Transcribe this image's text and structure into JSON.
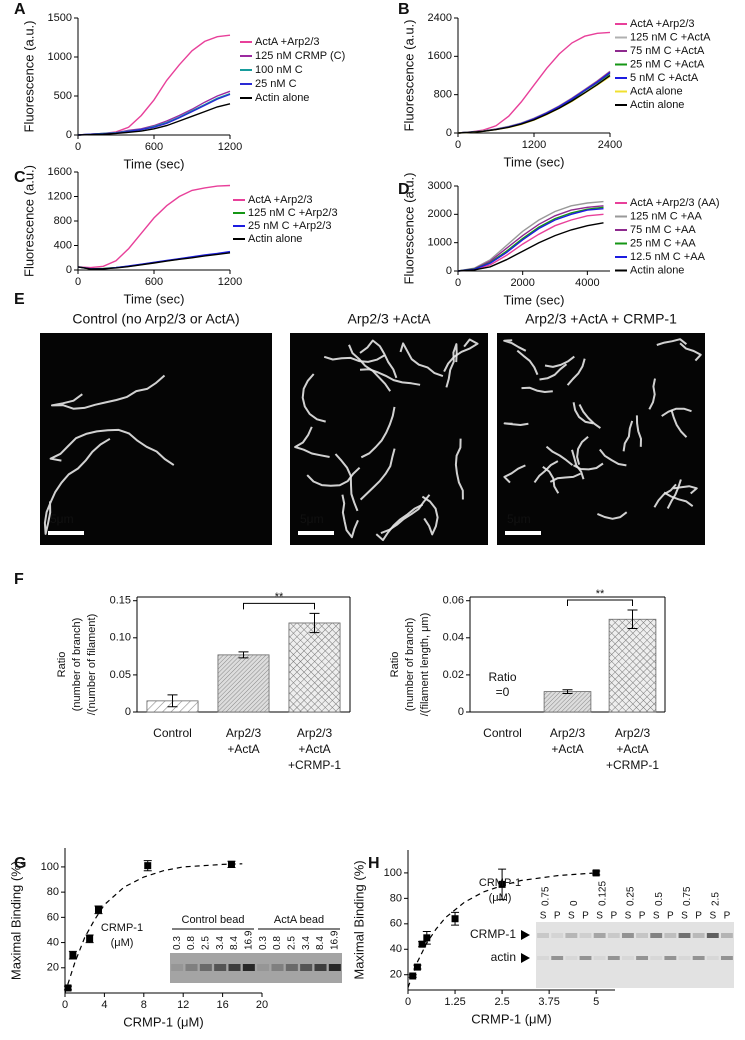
{
  "chart_data": [
    {
      "type": "line",
      "label": "A",
      "xlabel": "Time (sec)",
      "ylabel": "Fluorescence (a.u.)",
      "xlim": [
        0,
        1200
      ],
      "ylim": [
        0,
        1500
      ],
      "xticks": [
        0,
        600,
        1200
      ],
      "yticks": [
        0,
        500,
        1000,
        1500
      ],
      "x": [
        0,
        100,
        200,
        300,
        400,
        500,
        600,
        700,
        800,
        900,
        1000,
        1100,
        1200
      ],
      "series": [
        {
          "name": "ActA +Arp2/3",
          "color": "#e8409a",
          "values": [
            0,
            10,
            20,
            40,
            100,
            250,
            450,
            700,
            900,
            1080,
            1200,
            1260,
            1280
          ]
        },
        {
          "name": "125 nM CRMP (C)",
          "color": "#9c2aa0",
          "values": [
            0,
            10,
            20,
            30,
            60,
            80,
            120,
            180,
            250,
            330,
            420,
            500,
            560
          ]
        },
        {
          "name": "100 nM C",
          "color": "#179c9c",
          "values": [
            0,
            10,
            20,
            30,
            50,
            70,
            110,
            160,
            230,
            310,
            390,
            470,
            530
          ]
        },
        {
          "name": "25 nM C",
          "color": "#2a2ad4",
          "values": [
            0,
            10,
            15,
            25,
            45,
            70,
            100,
            150,
            220,
            300,
            380,
            460,
            520
          ]
        },
        {
          "name": "Actin alone",
          "color": "#000000",
          "values": [
            0,
            5,
            10,
            20,
            35,
            50,
            80,
            120,
            180,
            240,
            300,
            360,
            400
          ]
        }
      ]
    },
    {
      "type": "line",
      "label": "B",
      "xlabel": "Time (sec)",
      "ylabel": "Fluorescence (a.u.)",
      "xlim": [
        0,
        2400
      ],
      "ylim": [
        0,
        2400
      ],
      "xticks": [
        0,
        1200,
        2400
      ],
      "yticks": [
        0,
        800,
        1600,
        2400
      ],
      "x": [
        0,
        200,
        400,
        600,
        800,
        1000,
        1200,
        1400,
        1600,
        1800,
        2000,
        2200,
        2400
      ],
      "series": [
        {
          "name": "ActA +Arp2/3",
          "color": "#e8409a",
          "values": [
            0,
            20,
            60,
            150,
            350,
            650,
            1000,
            1350,
            1650,
            1880,
            2020,
            2080,
            2100
          ]
        },
        {
          "name": "125 nM C +ActA",
          "color": "#b0b0b0",
          "values": [
            0,
            20,
            45,
            85,
            140,
            210,
            310,
            430,
            570,
            730,
            910,
            1090,
            1290
          ]
        },
        {
          "name": "75 nM C +ActA",
          "color": "#8e2a8e",
          "values": [
            0,
            20,
            40,
            80,
            130,
            200,
            300,
            420,
            560,
            720,
            900,
            1080,
            1280
          ]
        },
        {
          "name": "25 nM C +ActA",
          "color": "#159615",
          "values": [
            0,
            18,
            38,
            75,
            125,
            195,
            290,
            410,
            545,
            700,
            880,
            1050,
            1240
          ]
        },
        {
          "name": "5 nM C +ActA",
          "color": "#1c1ce0",
          "values": [
            0,
            18,
            38,
            78,
            128,
            198,
            295,
            415,
            550,
            710,
            890,
            1060,
            1260
          ]
        },
        {
          "name": "ActA alone",
          "color": "#f0e030",
          "values": [
            0,
            15,
            35,
            70,
            115,
            180,
            270,
            385,
            515,
            660,
            830,
            1000,
            1180
          ]
        },
        {
          "name": "Actin alone",
          "color": "#000000",
          "values": [
            0,
            15,
            35,
            72,
            118,
            185,
            275,
            390,
            520,
            670,
            840,
            1010,
            1200
          ]
        }
      ]
    },
    {
      "type": "line",
      "label": "C",
      "xlabel": "Time (sec)",
      "ylabel": "Fluorescence (a.u.)",
      "xlim": [
        0,
        1200
      ],
      "ylim": [
        0,
        1600
      ],
      "xticks": [
        0,
        600,
        1200
      ],
      "yticks": [
        0,
        400,
        800,
        1200,
        1600
      ],
      "x": [
        0,
        100,
        200,
        300,
        400,
        500,
        600,
        700,
        800,
        900,
        1000,
        1100,
        1200
      ],
      "series": [
        {
          "name": "ActA +Arp2/3",
          "color": "#e8409a",
          "values": [
            50,
            40,
            60,
            150,
            350,
            600,
            850,
            1050,
            1200,
            1300,
            1340,
            1370,
            1380
          ]
        },
        {
          "name": "125 nM C +Arp2/3",
          "color": "#159615",
          "values": [
            50,
            20,
            25,
            40,
            60,
            90,
            120,
            150,
            180,
            210,
            240,
            265,
            290
          ]
        },
        {
          "name": "25 nM C +Arp2/3",
          "color": "#1c1ce0",
          "values": [
            50,
            20,
            20,
            40,
            65,
            95,
            125,
            155,
            185,
            215,
            245,
            270,
            300
          ]
        },
        {
          "name": "Actin alone",
          "color": "#000000",
          "values": [
            50,
            15,
            20,
            35,
            55,
            85,
            115,
            145,
            175,
            200,
            230,
            255,
            280
          ]
        }
      ]
    },
    {
      "type": "line",
      "label": "D",
      "xlabel": "Time (sec)",
      "ylabel": "Fluorescence (a.u.)",
      "xlim": [
        0,
        4700
      ],
      "ylim": [
        0,
        3000
      ],
      "xticks": [
        0,
        2000,
        4000
      ],
      "yticks": [
        0,
        1000,
        2000,
        3000
      ],
      "x": [
        0,
        500,
        1000,
        1500,
        2000,
        2500,
        3000,
        3500,
        4000,
        4500
      ],
      "series": [
        {
          "name": "ActA +Arp2/3 (AA)",
          "color": "#e8409a",
          "values": [
            0,
            50,
            220,
            550,
            950,
            1300,
            1600,
            1800,
            1950,
            2000
          ]
        },
        {
          "name": "125 nM C +AA",
          "color": "#999999",
          "values": [
            0,
            100,
            400,
            900,
            1400,
            1800,
            2100,
            2300,
            2400,
            2450
          ]
        },
        {
          "name": "75 nM C +AA",
          "color": "#8e2a8e",
          "values": [
            0,
            80,
            350,
            800,
            1250,
            1650,
            1950,
            2150,
            2250,
            2300
          ]
        },
        {
          "name": "25 nM C +AA",
          "color": "#159615",
          "values": [
            0,
            70,
            300,
            700,
            1150,
            1550,
            1850,
            2050,
            2180,
            2250
          ]
        },
        {
          "name": "12.5 nM C +AA",
          "color": "#1c1ce0",
          "values": [
            0,
            60,
            280,
            650,
            1100,
            1500,
            1800,
            2000,
            2150,
            2200
          ]
        },
        {
          "name": "Actin alone",
          "color": "#000000",
          "values": [
            0,
            40,
            150,
            400,
            700,
            1000,
            1250,
            1450,
            1600,
            1700
          ]
        }
      ]
    },
    {
      "type": "micrograph",
      "label": "E",
      "panels": [
        {
          "title": "Control (no Arp2/3 or ActA)",
          "scale": "5μm"
        },
        {
          "title": "Arp2/3 +ActA",
          "scale": "5μm"
        },
        {
          "title": "Arp2/3 +ActA + CRMP-1",
          "scale": "5μm"
        }
      ]
    },
    {
      "type": "bar",
      "label": "F",
      "ylabel": [
        "Ratio",
        "(number of branch)",
        "/(number of filament)"
      ],
      "categories": [
        [
          "Control"
        ],
        [
          "Arp2/3",
          "+ActA"
        ],
        [
          "Arp2/3",
          "+ActA",
          "+CRMP-1"
        ]
      ],
      "values": [
        0.015,
        0.077,
        0.12
      ],
      "errors": [
        0.008,
        0.004,
        0.013
      ],
      "ylim": [
        0,
        0.155
      ],
      "yticks": [
        0,
        0.05,
        {
          "value": 0.1,
          "label": "0.10"
        },
        0.15
      ],
      "significance": "**"
    },
    {
      "type": "bar",
      "ylabel": [
        "Ratio",
        "(number of branch)",
        "/(filament length, μm)"
      ],
      "categories": [
        [
          "Control"
        ],
        [
          "Arp2/3",
          "+ActA"
        ],
        [
          "Arp2/3",
          "+ActA",
          "+CRMP-1"
        ]
      ],
      "values": [
        0,
        0.011,
        0.05
      ],
      "errors": [
        null,
        0.001,
        0.005
      ],
      "ylim": [
        0,
        0.062
      ],
      "yticks": [
        0,
        0.02,
        0.04,
        0.06
      ],
      "significance": "**",
      "note": [
        "Ratio",
        "=0"
      ]
    },
    {
      "type": "scatter",
      "label": "G",
      "xlabel": "CRMP-1 (μM)",
      "ylabel": "Maximal Binding (%)",
      "xlim": [
        0,
        20
      ],
      "ylim": [
        0,
        115
      ],
      "xticks": [
        0,
        4,
        8,
        12,
        16,
        20
      ],
      "yticks": [
        20,
        40,
        60,
        80,
        100
      ],
      "x": [
        0.3,
        0.8,
        2.5,
        3.4,
        8.4,
        16.9
      ],
      "values": [
        4,
        30,
        43,
        66,
        101,
        102
      ],
      "errors": [
        1.5,
        3,
        3,
        3,
        4,
        2.5
      ],
      "fit": {
        "x": [
          0,
          1,
          2,
          3,
          4,
          6,
          8,
          10,
          12,
          14,
          16,
          18
        ],
        "values": [
          0,
          24,
          44,
          58,
          70,
          84,
          92,
          97,
          100,
          101,
          102,
          102.5
        ]
      },
      "inset": {
        "title": "CRMP-1",
        "unit": "(μM)",
        "groups": [
          {
            "name": "Control bead",
            "lanes": [
              0.3,
              0.8,
              2.5,
              3.4,
              8.4,
              16.9
            ]
          },
          {
            "name": "ActA bead",
            "lanes": [
              0.3,
              0.8,
              2.5,
              3.4,
              8.4,
              16.9
            ]
          }
        ]
      }
    },
    {
      "type": "scatter",
      "label": "H",
      "xlabel": "CRMP-1 (μM)",
      "ylabel": "Maximal Binding (%)",
      "xlim": [
        0,
        5.5
      ],
      "ylim": [
        8,
        118
      ],
      "xticks": [
        0,
        1.25,
        2.5,
        3.75,
        5
      ],
      "yticks": [
        20,
        40,
        60,
        80,
        100
      ],
      "x": [
        0.125,
        0.25,
        0.375,
        0.5,
        1.25,
        2.5,
        5
      ],
      "values": [
        19,
        26,
        44,
        49,
        64,
        91,
        100
      ],
      "errors": [
        1,
        1.5,
        2,
        5,
        5,
        12,
        1.5
      ],
      "fit": {
        "x": [
          0,
          0.25,
          0.5,
          0.75,
          1,
          1.5,
          2,
          2.5,
          3,
          4,
          5
        ],
        "values": [
          10,
          30,
          45,
          56,
          65,
          77,
          85,
          90,
          94,
          98,
          100
        ]
      },
      "inset": {
        "title": "CRMP-1",
        "unit": "(μM)",
        "lanes": [
          0.75,
          0,
          0.125,
          0.25,
          0.5,
          0.75,
          2.5
        ],
        "fractions": [
          "S",
          "P"
        ],
        "bands": [
          "CRMP-1",
          "actin"
        ]
      }
    }
  ]
}
